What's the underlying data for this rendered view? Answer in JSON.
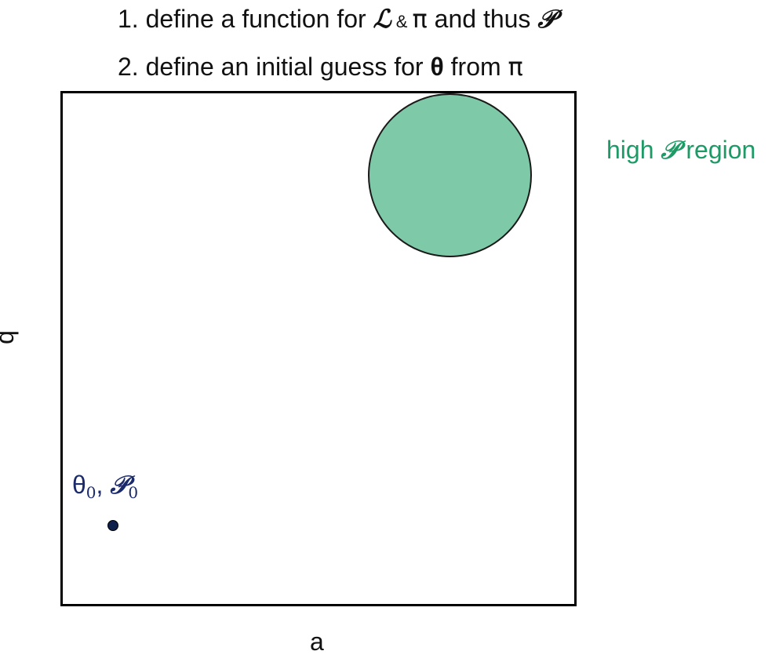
{
  "steps": [
    {
      "number": "1.",
      "text_a": " define a function for ",
      "likelihood_symbol": "ℒ",
      "ampersand": " & ",
      "prior_symbol": "π",
      "text_b": " and thus ",
      "posterior_symbol": "𝒫"
    },
    {
      "number": "2.",
      "text_a": " define an initial guess for ",
      "param_symbol": "θ",
      "text_b": " from ",
      "prior_symbol": "π"
    }
  ],
  "region": {
    "label_prefix": "high ",
    "label_symbol": "𝒫",
    "label_suffix": " region"
  },
  "initial_point": {
    "param_symbol": "θ",
    "param_sub": "0",
    "separator": ", ",
    "posterior_symbol": "𝒫",
    "posterior_sub": "0"
  },
  "axes": {
    "x_label": "a",
    "y_label": "b"
  },
  "colors": {
    "region_fill": "#7ecaa8",
    "region_label": "#1e9a66",
    "point": "#0d1f4a",
    "point_label": "#1a2a6a"
  }
}
